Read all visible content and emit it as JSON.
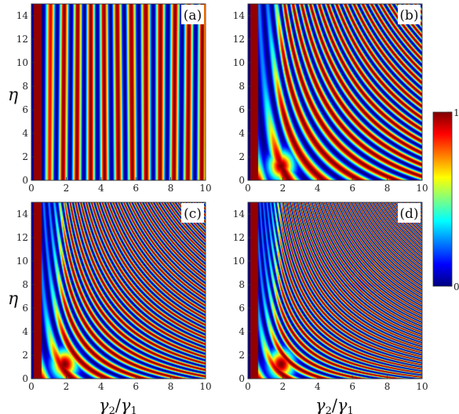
{
  "figure": {
    "ylabel": "η",
    "xlabel_main": "γ",
    "xlabel_sub_num": "2",
    "xlabel_sep": "/",
    "xlabel_den": "γ",
    "xlabel_sub_den": "1"
  },
  "colorbar": {
    "max_label": "1",
    "min_label": "0",
    "colors": [
      "#00007f",
      "#0000ff",
      "#007fff",
      "#00ffff",
      "#7fff7f",
      "#ffff00",
      "#ff7f00",
      "#ff0000",
      "#7f0000"
    ]
  },
  "chart_data": [
    {
      "type": "heatmap",
      "panel_label": "(a)",
      "x_range": [
        0,
        10
      ],
      "y_range": [
        0,
        15
      ],
      "x_ticks": [
        "0",
        "2",
        "4",
        "6",
        "8",
        "10"
      ],
      "y_ticks": [
        "0",
        "2",
        "4",
        "6",
        "8",
        "10",
        "12",
        "14"
      ],
      "z_range": [
        0,
        1
      ],
      "description_of_values": "intensity in [0,1]; nearly vertical stripes"
    },
    {
      "type": "heatmap",
      "panel_label": "(b)",
      "x_range": [
        0,
        10
      ],
      "y_range": [
        0,
        15
      ],
      "x_ticks": [
        "0",
        "2",
        "4",
        "6",
        "8",
        "10"
      ],
      "y_ticks": [
        "0",
        "2",
        "4",
        "6",
        "8",
        "10",
        "12",
        "14"
      ],
      "z_range": [
        0,
        1
      ]
    },
    {
      "type": "heatmap",
      "panel_label": "(c)",
      "x_range": [
        0,
        10
      ],
      "y_range": [
        0,
        15
      ],
      "x_ticks": [
        "0",
        "2",
        "4",
        "6",
        "8",
        "10"
      ],
      "y_ticks": [
        "0",
        "2",
        "4",
        "6",
        "8",
        "10",
        "12",
        "14"
      ],
      "z_range": [
        0,
        1
      ]
    },
    {
      "type": "heatmap",
      "panel_label": "(d)",
      "x_range": [
        0,
        10
      ],
      "y_range": [
        0,
        15
      ],
      "x_ticks": [
        "0",
        "2",
        "4",
        "6",
        "8",
        "10"
      ],
      "y_ticks": [
        "0",
        "2",
        "4",
        "6",
        "8",
        "10",
        "12",
        "14"
      ],
      "z_range": [
        0,
        1
      ]
    }
  ]
}
